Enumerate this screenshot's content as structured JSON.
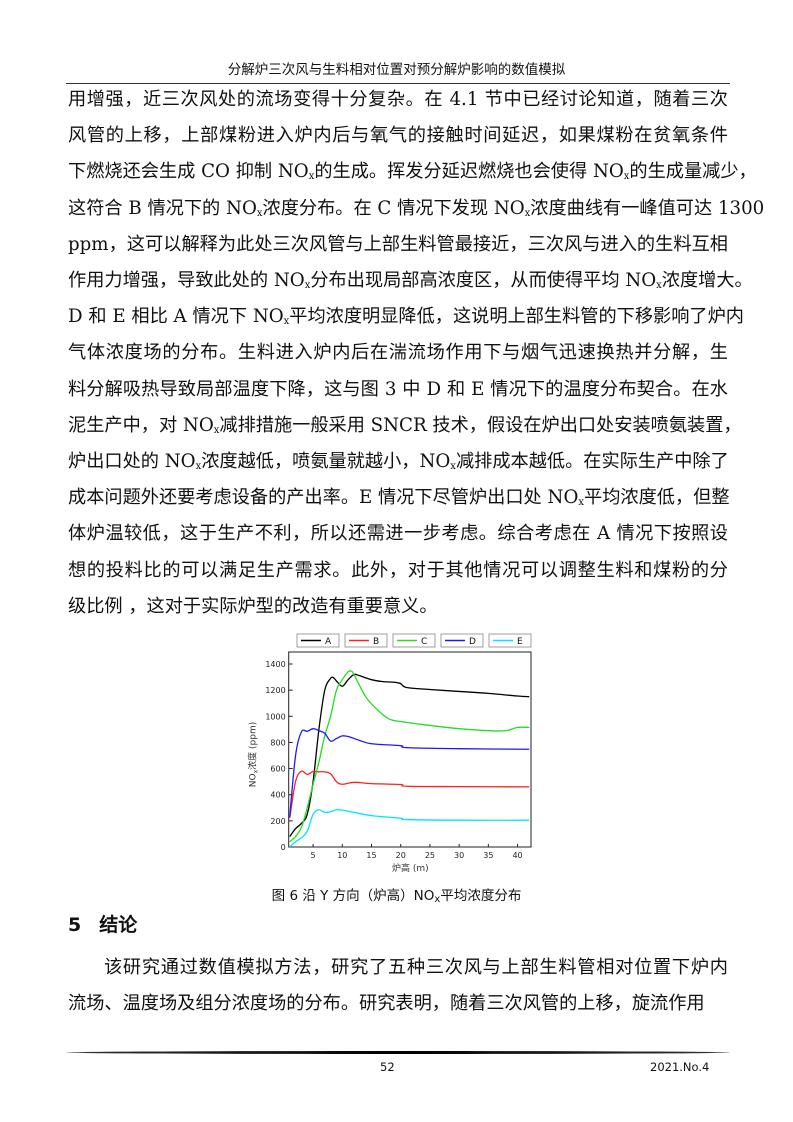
{
  "header": {
    "running_title": "分解炉三次风与生料相对位置对预分解炉影响的数值模拟"
  },
  "body_paragraph_1": [
    "用增强，近三次风处的流场变得十分复杂。在 4.1 节中已经讨论知道，随着三次",
    "风管的上移，上部煤粉进入炉内后与氧气的接触时间延迟，如果煤粉在贫氧条件",
    "下燃烧还会生成 CO 抑制 NOx的生成。挥发分延迟燃烧也会使得 NOx的生成量减少，",
    "这符合 B 情况下的 NOx浓度分布。在 C 情况下发现 NOx浓度曲线有一峰值可达 1300",
    "ppm，这可以解释为此处三次风管与上部生料管最接近，三次风与进入的生料互相",
    "作用力增强，导致此处的 NOx分布出现局部高浓度区，从而使得平均 NOx浓度增大。",
    "D 和 E 相比 A 情况下 NOx平均浓度明显降低，这说明上部生料管的下移影响了炉内",
    "气体浓度场的分布。生料进入炉内后在湍流场作用下与烟气迅速换热并分解，生",
    "料分解吸热导致局部温度下降，这与图 3 中 D 和 E 情况下的温度分布契合。在水",
    "泥生产中，对 NOx减排措施一般采用 SNCR 技术，假设在炉出口处安装喷氨装置，",
    "炉出口处的 NOx浓度越低，喷氨量就越小，NOx减排成本越低。在实际生产中除了",
    "成本问题外还要考虑设备的产出率。E 情况下尽管炉出口处 NOx平均浓度低，但整",
    "体炉温较低，这于生产不利，所以还需进一步考虑。综合考虑在 A 情况下按照设",
    "想的投料比的可以满足生产需求。此外，对于其他情况可以调整生料和煤粉的分",
    "级比例 ，这对于实际炉型的改造有重要意义。"
  ],
  "figure": {
    "caption": "图 6 沿 Y 方向（炉高）NOx平均浓度分布"
  },
  "section": {
    "number": "5",
    "title": "结论"
  },
  "body_paragraph_2": [
    "该研究通过数值模拟方法，研究了五种三次风与上部生料管相对位置下炉内",
    "流场、温度场及组分浓度场的分布。研究表明，随着三次风管的上移，旋流作用"
  ],
  "footer": {
    "page_number": "52",
    "issue": "2021.No.4"
  },
  "chart_data": {
    "type": "line",
    "xlabel": "炉高 (m)",
    "ylabel": "NOx浓度 (ppm)",
    "xlim": [
      1,
      42.3
    ],
    "ylim": [
      0,
      1480
    ],
    "xticks": [
      5,
      10,
      15,
      20,
      25,
      30,
      35,
      40
    ],
    "yticks": [
      0,
      200,
      400,
      600,
      800,
      1000,
      1200,
      1400
    ],
    "grid": false,
    "legend_placement": "top",
    "series": [
      {
        "name": "A",
        "color": "#000000",
        "x": [
          1,
          2,
          3,
          4,
          5,
          6,
          7,
          8,
          8.5,
          9,
          10,
          11,
          12,
          13,
          15,
          17,
          19,
          20,
          21,
          25,
          30,
          35,
          40,
          42
        ],
        "y": [
          80,
          140,
          180,
          250,
          500,
          900,
          1200,
          1290,
          1295,
          1270,
          1230,
          1280,
          1320,
          1310,
          1280,
          1265,
          1260,
          1250,
          1220,
          1205,
          1190,
          1175,
          1155,
          1150
        ]
      },
      {
        "name": "B",
        "color": "#ff2020",
        "x": [
          1,
          2,
          3,
          4,
          5,
          6,
          7,
          8,
          9,
          10,
          12,
          15,
          20,
          21,
          30,
          42
        ],
        "y": [
          220,
          500,
          580,
          555,
          578,
          575,
          575,
          560,
          500,
          480,
          495,
          485,
          478,
          465,
          462,
          460
        ]
      },
      {
        "name": "C",
        "color": "#22dd22",
        "x": [
          1,
          2,
          3,
          4,
          5,
          6,
          7,
          8,
          9,
          10,
          11,
          11.5,
          12,
          14,
          16,
          18,
          20,
          25,
          30,
          35,
          38,
          40,
          42
        ],
        "y": [
          40,
          80,
          150,
          300,
          480,
          650,
          850,
          1000,
          1200,
          1280,
          1340,
          1345,
          1320,
          1150,
          1050,
          980,
          960,
          930,
          905,
          890,
          890,
          915,
          915
        ]
      },
      {
        "name": "D",
        "color": "#1a1aff",
        "x": [
          1,
          2,
          3,
          4,
          5,
          6,
          7,
          8,
          9,
          10,
          11,
          13,
          15,
          20,
          21,
          30,
          42
        ],
        "y": [
          230,
          700,
          880,
          885,
          905,
          890,
          870,
          810,
          830,
          850,
          845,
          815,
          790,
          775,
          760,
          752,
          748
        ]
      },
      {
        "name": "E",
        "color": "#00e5ff",
        "x": [
          1,
          2,
          3,
          4,
          5,
          6,
          7,
          8,
          9,
          10,
          12,
          15,
          20,
          21,
          30,
          42
        ],
        "y": [
          0,
          40,
          70,
          120,
          250,
          285,
          265,
          270,
          285,
          282,
          265,
          240,
          220,
          210,
          205,
          205
        ]
      }
    ]
  }
}
